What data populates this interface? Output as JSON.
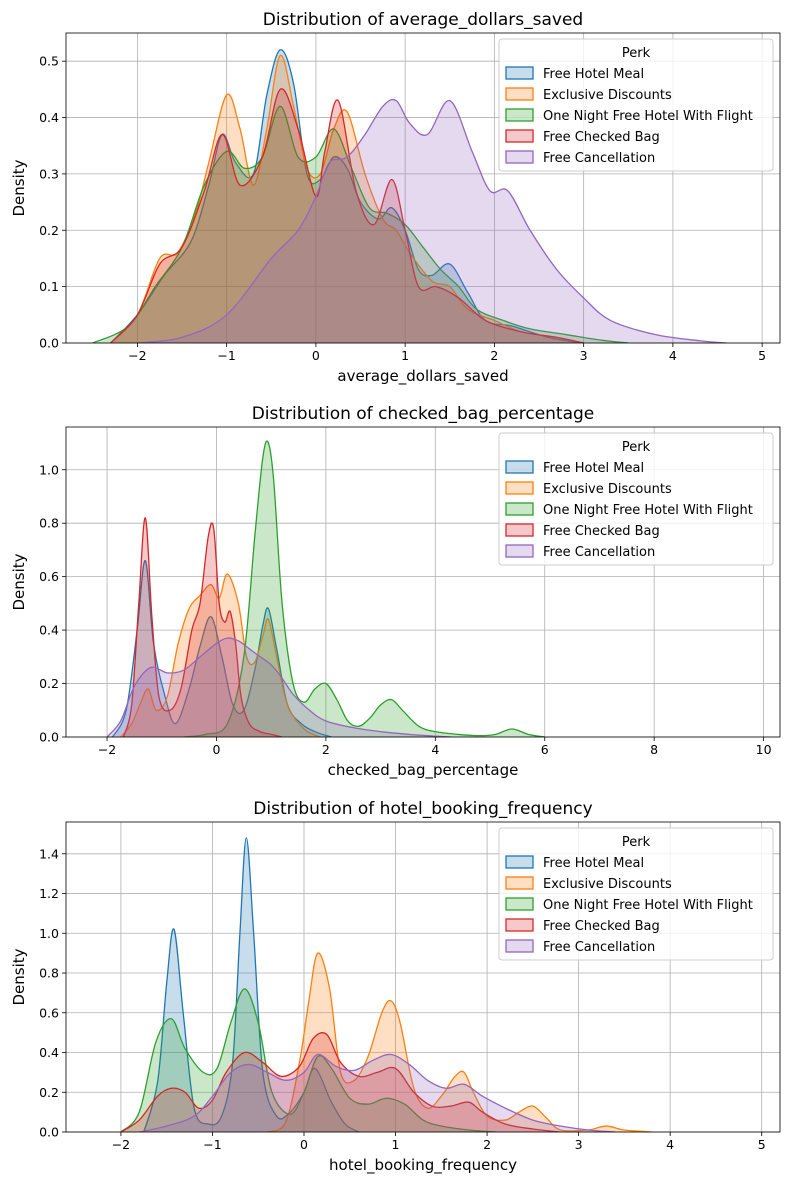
{
  "chart_data": [
    {
      "type": "area",
      "title": "Distribution of average_dollars_saved",
      "xlabel": "average_dollars_saved",
      "ylabel": "Density",
      "xlim": [
        -2.8,
        5.2
      ],
      "ylim": [
        0,
        0.55
      ],
      "xticks": [
        -2,
        -1,
        0,
        1,
        2,
        3,
        4,
        5
      ],
      "yticks": [
        0.0,
        0.1,
        0.2,
        0.3,
        0.4,
        0.5
      ],
      "xtick_labels": [
        "−2",
        "−1",
        "0",
        "1",
        "2",
        "3",
        "4",
        "5"
      ],
      "ytick_labels": [
        "0.0",
        "0.1",
        "0.2",
        "0.3",
        "0.4",
        "0.5"
      ],
      "grid": true,
      "legend": {
        "title": "Perk",
        "position": "upper right"
      },
      "series": [
        {
          "name": "Free Hotel Meal",
          "color": "#1f77b4",
          "x": [
            -2.3,
            -2.0,
            -1.7,
            -1.4,
            -1.2,
            -1.05,
            -0.9,
            -0.7,
            -0.55,
            -0.4,
            -0.25,
            -0.1,
            0.05,
            0.2,
            0.35,
            0.5,
            0.7,
            0.85,
            1.0,
            1.15,
            1.3,
            1.5,
            1.7,
            1.9,
            2.2,
            2.6,
            3.0
          ],
          "y": [
            0.0,
            0.05,
            0.12,
            0.18,
            0.28,
            0.37,
            0.32,
            0.3,
            0.44,
            0.52,
            0.46,
            0.3,
            0.29,
            0.33,
            0.31,
            0.25,
            0.22,
            0.24,
            0.2,
            0.13,
            0.12,
            0.14,
            0.09,
            0.04,
            0.03,
            0.01,
            0.0
          ]
        },
        {
          "name": "Exclusive Discounts",
          "color": "#ff7f0e",
          "x": [
            -2.3,
            -2.0,
            -1.75,
            -1.55,
            -1.35,
            -1.2,
            -1.0,
            -0.85,
            -0.7,
            -0.55,
            -0.4,
            -0.25,
            -0.1,
            0.05,
            0.2,
            0.35,
            0.55,
            0.75,
            0.9,
            1.05,
            1.3,
            1.5,
            1.7,
            2.0,
            2.3,
            2.7,
            3.0
          ],
          "y": [
            0.0,
            0.05,
            0.15,
            0.16,
            0.23,
            0.32,
            0.44,
            0.38,
            0.28,
            0.38,
            0.51,
            0.42,
            0.31,
            0.3,
            0.38,
            0.41,
            0.3,
            0.22,
            0.2,
            0.16,
            0.11,
            0.1,
            0.06,
            0.04,
            0.02,
            0.01,
            0.0
          ]
        },
        {
          "name": "One Night Free Hotel With Flight",
          "color": "#2ca02c",
          "x": [
            -2.5,
            -2.1,
            -1.8,
            -1.5,
            -1.25,
            -1.0,
            -0.8,
            -0.6,
            -0.4,
            -0.2,
            0.0,
            0.2,
            0.4,
            0.6,
            0.8,
            1.0,
            1.2,
            1.4,
            1.6,
            1.8,
            2.1,
            2.4,
            2.8,
            3.2,
            3.5
          ],
          "y": [
            0.0,
            0.03,
            0.1,
            0.17,
            0.28,
            0.34,
            0.31,
            0.33,
            0.42,
            0.33,
            0.33,
            0.38,
            0.31,
            0.24,
            0.23,
            0.21,
            0.17,
            0.13,
            0.1,
            0.06,
            0.04,
            0.025,
            0.015,
            0.005,
            0.0
          ]
        },
        {
          "name": "Free Checked Bag",
          "color": "#d62728",
          "x": [
            -2.3,
            -2.0,
            -1.75,
            -1.5,
            -1.25,
            -1.05,
            -0.85,
            -0.6,
            -0.4,
            -0.2,
            0.0,
            0.1,
            0.25,
            0.45,
            0.65,
            0.85,
            1.0,
            1.15,
            1.35,
            1.6,
            1.9,
            2.3,
            2.7,
            3.0
          ],
          "y": [
            0.0,
            0.05,
            0.14,
            0.17,
            0.27,
            0.37,
            0.28,
            0.33,
            0.45,
            0.38,
            0.26,
            0.34,
            0.43,
            0.27,
            0.21,
            0.29,
            0.2,
            0.1,
            0.1,
            0.08,
            0.04,
            0.02,
            0.01,
            0.0
          ]
        },
        {
          "name": "Free Cancellation",
          "color": "#9467bd",
          "x": [
            -2.0,
            -1.5,
            -1.0,
            -0.5,
            -0.2,
            0.0,
            0.15,
            0.35,
            0.55,
            0.75,
            0.9,
            1.05,
            1.25,
            1.5,
            1.75,
            1.95,
            2.15,
            2.4,
            2.7,
            3.0,
            3.3,
            3.8,
            4.3,
            4.6
          ],
          "y": [
            0.0,
            0.01,
            0.05,
            0.15,
            0.2,
            0.26,
            0.32,
            0.33,
            0.37,
            0.42,
            0.43,
            0.39,
            0.37,
            0.43,
            0.34,
            0.27,
            0.27,
            0.2,
            0.13,
            0.08,
            0.04,
            0.015,
            0.004,
            0.0
          ]
        }
      ]
    },
    {
      "type": "area",
      "title": "Distribution of checked_bag_percentage",
      "xlabel": "checked_bag_percentage",
      "ylabel": "Density",
      "xlim": [
        -2.75,
        10.3
      ],
      "ylim": [
        0,
        1.16
      ],
      "xticks": [
        -2,
        0,
        2,
        4,
        6,
        8,
        10
      ],
      "yticks": [
        0.0,
        0.2,
        0.4,
        0.6,
        0.8,
        1.0
      ],
      "xtick_labels": [
        "−2",
        "0",
        "2",
        "4",
        "6",
        "8",
        "10"
      ],
      "ytick_labels": [
        "0.0",
        "0.2",
        "0.4",
        "0.6",
        "0.8",
        "1.0"
      ],
      "grid": true,
      "legend": {
        "title": "Perk",
        "position": "upper right"
      },
      "series": [
        {
          "name": "Free Hotel Meal",
          "color": "#1f77b4",
          "x": [
            -1.9,
            -1.65,
            -1.45,
            -1.3,
            -1.15,
            -0.95,
            -0.75,
            -0.5,
            -0.3,
            -0.1,
            0.1,
            0.3,
            0.5,
            0.7,
            0.85,
            0.95,
            1.1,
            1.3,
            1.55,
            1.8,
            2.1
          ],
          "y": [
            0.0,
            0.1,
            0.4,
            0.66,
            0.35,
            0.16,
            0.05,
            0.18,
            0.34,
            0.45,
            0.3,
            0.12,
            0.1,
            0.25,
            0.42,
            0.48,
            0.33,
            0.12,
            0.05,
            0.02,
            0.0
          ]
        },
        {
          "name": "Exclusive Discounts",
          "color": "#ff7f0e",
          "x": [
            -1.75,
            -1.55,
            -1.4,
            -1.25,
            -1.1,
            -0.9,
            -0.7,
            -0.5,
            -0.3,
            -0.1,
            0.05,
            0.2,
            0.4,
            0.55,
            0.7,
            0.85,
            0.95,
            1.1,
            1.3,
            1.6,
            1.9
          ],
          "y": [
            0.0,
            0.05,
            0.12,
            0.18,
            0.1,
            0.15,
            0.35,
            0.48,
            0.53,
            0.57,
            0.52,
            0.61,
            0.5,
            0.3,
            0.28,
            0.38,
            0.44,
            0.3,
            0.12,
            0.03,
            0.0
          ]
        },
        {
          "name": "One Night Free Hotel With Flight",
          "color": "#2ca02c",
          "x": [
            -0.6,
            -0.2,
            0.2,
            0.5,
            0.7,
            0.85,
            0.95,
            1.05,
            1.2,
            1.4,
            1.6,
            1.8,
            2.0,
            2.2,
            2.4,
            2.6,
            2.8,
            3.0,
            3.2,
            3.4,
            3.7,
            4.0,
            4.4,
            4.8,
            5.1,
            5.4,
            5.7,
            6.0
          ],
          "y": [
            0.0,
            0.01,
            0.05,
            0.3,
            0.75,
            1.05,
            1.1,
            0.95,
            0.5,
            0.2,
            0.13,
            0.18,
            0.2,
            0.14,
            0.06,
            0.04,
            0.07,
            0.12,
            0.14,
            0.1,
            0.04,
            0.02,
            0.01,
            0.005,
            0.01,
            0.03,
            0.01,
            0.0
          ]
        },
        {
          "name": "Free Checked Bag",
          "color": "#d62728",
          "x": [
            -1.7,
            -1.55,
            -1.42,
            -1.3,
            -1.18,
            -1.05,
            -0.85,
            -0.65,
            -0.45,
            -0.3,
            -0.15,
            -0.05,
            0.05,
            0.15,
            0.25,
            0.35,
            0.45,
            0.6,
            0.8,
            1.0,
            1.2
          ],
          "y": [
            0.0,
            0.12,
            0.5,
            0.82,
            0.45,
            0.15,
            0.1,
            0.18,
            0.4,
            0.5,
            0.75,
            0.78,
            0.5,
            0.43,
            0.47,
            0.35,
            0.15,
            0.05,
            0.02,
            0.01,
            0.0
          ]
        },
        {
          "name": "Free Cancellation",
          "color": "#9467bd",
          "x": [
            -2.0,
            -1.75,
            -1.5,
            -1.2,
            -0.9,
            -0.6,
            -0.3,
            0.0,
            0.2,
            0.4,
            0.6,
            0.8,
            1.0,
            1.2,
            1.4,
            1.7,
            2.0,
            2.5,
            3.0,
            3.5,
            4.0,
            4.3
          ],
          "y": [
            0.0,
            0.06,
            0.19,
            0.26,
            0.24,
            0.25,
            0.3,
            0.35,
            0.37,
            0.36,
            0.33,
            0.3,
            0.27,
            0.22,
            0.16,
            0.1,
            0.06,
            0.035,
            0.02,
            0.01,
            0.003,
            0.0
          ]
        }
      ]
    },
    {
      "type": "area",
      "title": "Distribution of hotel_booking_frequency",
      "xlabel": "hotel_booking_frequency",
      "ylabel": "Density",
      "xlim": [
        -2.6,
        5.2
      ],
      "ylim": [
        0,
        1.56
      ],
      "xticks": [
        -2,
        -1,
        0,
        1,
        2,
        3,
        4,
        5
      ],
      "yticks": [
        0.0,
        0.2,
        0.4,
        0.6,
        0.8,
        1.0,
        1.2,
        1.4
      ],
      "xtick_labels": [
        "−2",
        "−1",
        "0",
        "1",
        "2",
        "3",
        "4",
        "5"
      ],
      "ytick_labels": [
        "0.0",
        "0.2",
        "0.4",
        "0.6",
        "0.8",
        "1.0",
        "1.2",
        "1.4"
      ],
      "grid": true,
      "legend": {
        "title": "Perk",
        "position": "upper right"
      },
      "series": [
        {
          "name": "Free Hotel Meal",
          "color": "#1f77b4",
          "x": [
            -1.75,
            -1.6,
            -1.5,
            -1.42,
            -1.32,
            -1.2,
            -1.05,
            -0.9,
            -0.78,
            -0.7,
            -0.63,
            -0.55,
            -0.45,
            -0.3,
            -0.15,
            0.0,
            0.12,
            0.3,
            0.45,
            0.6
          ],
          "y": [
            0.0,
            0.25,
            0.75,
            1.02,
            0.6,
            0.12,
            0.04,
            0.08,
            0.35,
            1.0,
            1.48,
            1.0,
            0.3,
            0.08,
            0.1,
            0.2,
            0.32,
            0.15,
            0.04,
            0.0
          ]
        },
        {
          "name": "Exclusive Discounts",
          "color": "#ff7f0e",
          "x": [
            -0.4,
            -0.2,
            -0.05,
            0.05,
            0.15,
            0.28,
            0.4,
            0.55,
            0.7,
            0.85,
            0.95,
            1.05,
            1.2,
            1.35,
            1.5,
            1.65,
            1.75,
            1.85,
            2.0,
            2.2,
            2.35,
            2.5,
            2.65,
            2.8,
            3.1,
            3.3,
            3.5,
            3.8
          ],
          "y": [
            0.0,
            0.05,
            0.35,
            0.65,
            0.9,
            0.72,
            0.3,
            0.26,
            0.38,
            0.6,
            0.66,
            0.55,
            0.22,
            0.12,
            0.18,
            0.28,
            0.3,
            0.2,
            0.08,
            0.06,
            0.1,
            0.13,
            0.07,
            0.01,
            0.01,
            0.03,
            0.01,
            0.0
          ]
        },
        {
          "name": "One Night Free Hotel With Flight",
          "color": "#2ca02c",
          "x": [
            -2.0,
            -1.8,
            -1.62,
            -1.45,
            -1.3,
            -1.1,
            -0.95,
            -0.8,
            -0.65,
            -0.5,
            -0.35,
            -0.15,
            0.0,
            0.15,
            0.3,
            0.5,
            0.7,
            0.9,
            1.1,
            1.3,
            1.5,
            1.8,
            2.1
          ],
          "y": [
            0.0,
            0.1,
            0.45,
            0.57,
            0.42,
            0.3,
            0.32,
            0.55,
            0.72,
            0.55,
            0.2,
            0.09,
            0.2,
            0.38,
            0.32,
            0.17,
            0.14,
            0.17,
            0.14,
            0.06,
            0.03,
            0.01,
            0.0
          ]
        },
        {
          "name": "Free Checked Bag",
          "color": "#d62728",
          "x": [
            -2.0,
            -1.8,
            -1.6,
            -1.45,
            -1.3,
            -1.15,
            -1.0,
            -0.85,
            -0.65,
            -0.45,
            -0.25,
            -0.05,
            0.1,
            0.25,
            0.4,
            0.6,
            0.8,
            1.0,
            1.2,
            1.4,
            1.6,
            1.8,
            1.95,
            2.2,
            2.5,
            2.8
          ],
          "y": [
            0.0,
            0.06,
            0.18,
            0.22,
            0.2,
            0.12,
            0.16,
            0.3,
            0.4,
            0.35,
            0.28,
            0.33,
            0.47,
            0.49,
            0.35,
            0.28,
            0.3,
            0.32,
            0.2,
            0.13,
            0.13,
            0.15,
            0.1,
            0.04,
            0.015,
            0.0
          ]
        },
        {
          "name": "Free Cancellation",
          "color": "#9467bd",
          "x": [
            -1.8,
            -1.5,
            -1.2,
            -1.0,
            -0.8,
            -0.6,
            -0.4,
            -0.2,
            0.0,
            0.15,
            0.35,
            0.55,
            0.75,
            0.95,
            1.15,
            1.35,
            1.55,
            1.75,
            1.95,
            2.2,
            2.5,
            2.8,
            3.1,
            3.4
          ],
          "y": [
            0.0,
            0.03,
            0.08,
            0.18,
            0.3,
            0.34,
            0.3,
            0.26,
            0.3,
            0.39,
            0.33,
            0.31,
            0.36,
            0.39,
            0.34,
            0.26,
            0.22,
            0.24,
            0.18,
            0.12,
            0.06,
            0.03,
            0.01,
            0.0
          ]
        }
      ]
    }
  ]
}
